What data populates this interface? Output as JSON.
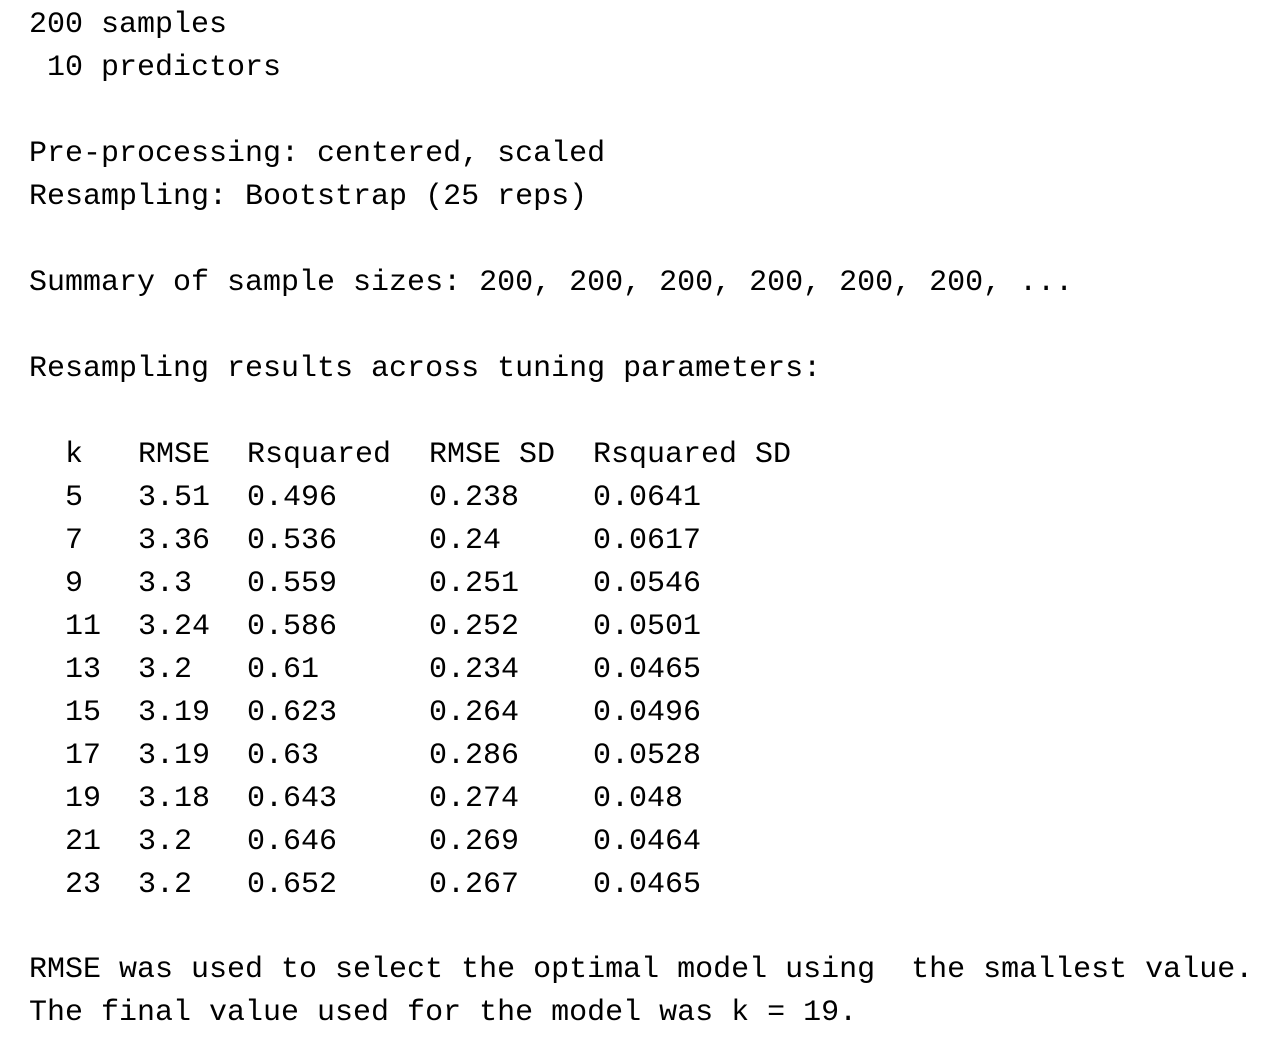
{
  "header": {
    "samples": "200 samples",
    "predictors": " 10 predictors",
    "preprocessing": "Pre-processing: centered, scaled",
    "resampling": "Resampling: Bootstrap (25 reps)",
    "sample_sizes": "Summary of sample sizes: 200, 200, 200, 200, 200, 200, ...",
    "results_title": "Resampling results across tuning parameters:"
  },
  "table": {
    "columns": [
      "k",
      "RMSE",
      "Rsquared",
      "RMSE SD",
      "Rsquared SD"
    ],
    "rows": [
      [
        "5",
        "3.51",
        "0.496",
        "0.238",
        "0.0641"
      ],
      [
        "7",
        "3.36",
        "0.536",
        "0.24",
        "0.0617"
      ],
      [
        "9",
        "3.3",
        "0.559",
        "0.251",
        "0.0546"
      ],
      [
        "11",
        "3.24",
        "0.586",
        "0.252",
        "0.0501"
      ],
      [
        "13",
        "3.2",
        "0.61",
        "0.234",
        "0.0465"
      ],
      [
        "15",
        "3.19",
        "0.623",
        "0.264",
        "0.0496"
      ],
      [
        "17",
        "3.19",
        "0.63",
        "0.286",
        "0.0528"
      ],
      [
        "19",
        "3.18",
        "0.643",
        "0.274",
        "0.048"
      ],
      [
        "21",
        "3.2",
        "0.646",
        "0.269",
        "0.0464"
      ],
      [
        "23",
        "3.2",
        "0.652",
        "0.267",
        "0.0465"
      ]
    ]
  },
  "footer": {
    "selection": "RMSE was used to select the optimal model using  the smallest value.",
    "final": "The final value used for the model was k = 19."
  }
}
